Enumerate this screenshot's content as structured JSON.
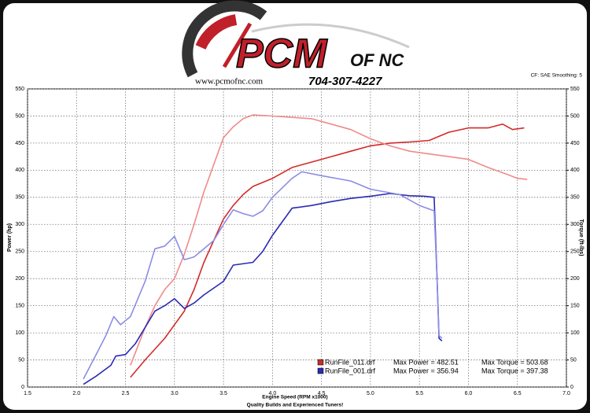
{
  "header": {
    "brand": "PCM",
    "brand_suffix": "OF NC",
    "website": "www.pcmofnc.com",
    "phone": "704-307-4227",
    "settings": "CF: SAE  Smoothing: 5"
  },
  "legend": [
    {
      "file": "RunFile_011.drf",
      "max_power": "Max Power = 482.51",
      "max_torque": "Max Torque = 503.68"
    },
    {
      "file": "RunFile_001.drf",
      "max_power": "Max Power = 356.94",
      "max_torque": "Max Torque = 397.38"
    }
  ],
  "footer": "Quality Builds and Experienced Tuners!",
  "chart_data": {
    "type": "line",
    "x_label": "Engine Speed (RPM x1000)",
    "y_label": "Power (hp)",
    "y2_label": "Torque (ft-lbs)",
    "xlim": [
      1.5,
      7.0
    ],
    "xticks": [
      1.5,
      {
        "value": 2.0,
        "label": "2.0"
      },
      2.5,
      {
        "value": 3.0,
        "label": "3.0"
      },
      3.5,
      {
        "value": 4.0,
        "label": "4.0"
      },
      4.5,
      {
        "value": 5.0,
        "label": "5.0"
      },
      5.5,
      {
        "value": 6.0,
        "label": "6.0"
      },
      6.5,
      {
        "value": 7.0,
        "label": "7.0"
      }
    ],
    "ylim": [
      0,
      550
    ],
    "yticks": [
      0,
      50,
      100,
      150,
      200,
      250,
      300,
      350,
      400,
      450,
      500,
      550
    ],
    "y2lim": [
      0,
      550
    ],
    "y2ticks": [
      0,
      50,
      100,
      150,
      200,
      250,
      300,
      350,
      400,
      450,
      500,
      550
    ],
    "grid": true,
    "series": [
      {
        "name": "RunFile_011.drf Power",
        "color": "#d42a2a",
        "x": [
          2.55,
          2.7,
          2.9,
          3.0,
          3.1,
          3.2,
          3.3,
          3.4,
          3.5,
          3.6,
          3.7,
          3.8,
          4.0,
          4.2,
          4.4,
          4.6,
          4.8,
          5.0,
          5.2,
          5.4,
          5.6,
          5.8,
          6.0,
          6.2,
          6.35,
          6.45,
          6.57
        ],
        "values": [
          18,
          50,
          90,
          115,
          140,
          180,
          230,
          270,
          310,
          335,
          355,
          370,
          385,
          405,
          415,
          425,
          435,
          445,
          450,
          452,
          455,
          470,
          478,
          478,
          485,
          475,
          478
        ]
      },
      {
        "name": "RunFile_011.drf Torque",
        "color": "#f08a8a",
        "axis": "y2",
        "x": [
          2.55,
          2.7,
          2.8,
          2.9,
          3.0,
          3.1,
          3.2,
          3.3,
          3.4,
          3.5,
          3.6,
          3.7,
          3.8,
          4.0,
          4.4,
          4.6,
          4.8,
          5.0,
          5.2,
          5.4,
          5.6,
          5.8,
          6.0,
          6.2,
          6.4,
          6.5,
          6.6
        ],
        "values": [
          40,
          110,
          150,
          180,
          200,
          245,
          300,
          360,
          410,
          460,
          480,
          495,
          502,
          500,
          495,
          485,
          475,
          458,
          445,
          435,
          430,
          425,
          420,
          405,
          392,
          385,
          383
        ]
      },
      {
        "name": "RunFile_001.drf Power",
        "color": "#2a2ab4",
        "x": [
          2.07,
          2.2,
          2.35,
          2.4,
          2.5,
          2.6,
          2.7,
          2.8,
          2.9,
          3.0,
          3.1,
          3.2,
          3.3,
          3.5,
          3.6,
          3.8,
          3.9,
          4.0,
          4.2,
          4.4,
          4.6,
          4.8,
          5.0,
          5.2,
          5.4,
          5.55,
          5.65,
          5.68,
          5.7,
          5.73
        ],
        "values": [
          5,
          20,
          40,
          57,
          60,
          80,
          110,
          140,
          150,
          163,
          145,
          155,
          170,
          195,
          225,
          230,
          250,
          280,
          330,
          335,
          342,
          348,
          352,
          357,
          353,
          352,
          350,
          200,
          90,
          85
        ]
      },
      {
        "name": "RunFile_001.drf Torque",
        "color": "#8c8ce6",
        "axis": "y2",
        "x": [
          2.07,
          2.2,
          2.3,
          2.38,
          2.45,
          2.55,
          2.7,
          2.8,
          2.9,
          3.0,
          3.1,
          3.2,
          3.3,
          3.4,
          3.5,
          3.6,
          3.7,
          3.8,
          3.9,
          4.0,
          4.2,
          4.3,
          4.5,
          4.8,
          5.0,
          5.3,
          5.5,
          5.65,
          5.68,
          5.7,
          5.73
        ],
        "values": [
          15,
          60,
          95,
          130,
          115,
          130,
          195,
          255,
          260,
          278,
          235,
          240,
          255,
          270,
          300,
          327,
          320,
          315,
          325,
          350,
          385,
          397,
          390,
          380,
          365,
          355,
          335,
          325,
          200,
          95,
          90
        ]
      }
    ]
  }
}
